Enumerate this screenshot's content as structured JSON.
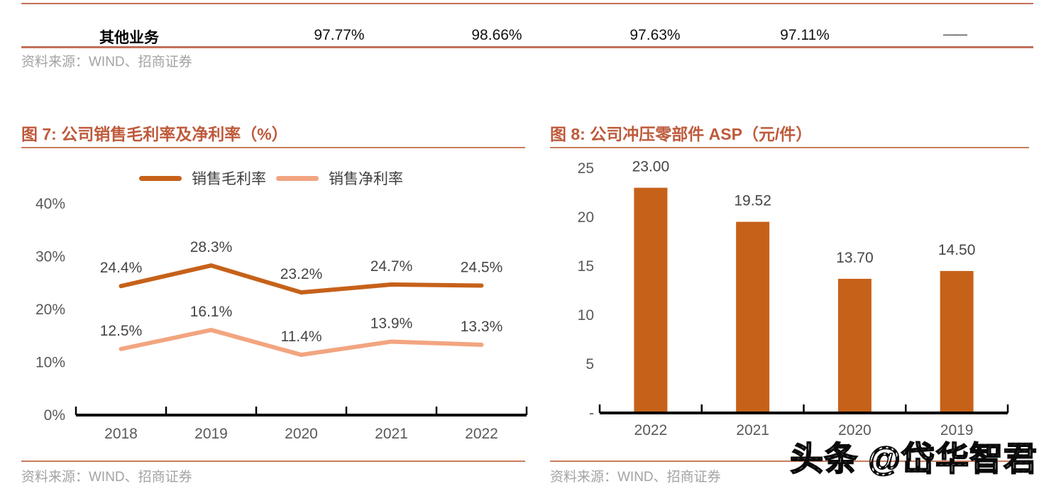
{
  "table": {
    "row_label": "其他业务",
    "values": [
      "97.77%",
      "98.66%",
      "97.63%",
      "97.11%",
      "——"
    ]
  },
  "source_top": "资料来源：WIND、招商证券",
  "watermark": "头条 @岱华智君",
  "chart_data": [
    {
      "type": "line",
      "title": "图 7: 公司销售毛利率及净利率（%）",
      "categories": [
        "2018",
        "2019",
        "2020",
        "2021",
        "2022"
      ],
      "series": [
        {
          "name": "销售毛利率",
          "values": [
            24.4,
            28.3,
            23.2,
            24.7,
            24.5
          ],
          "labels": [
            "24.4%",
            "28.3%",
            "23.2%",
            "24.7%",
            "24.5%"
          ],
          "color": "#C6611A"
        },
        {
          "name": "销售净利率",
          "values": [
            12.5,
            16.1,
            11.4,
            13.9,
            13.3
          ],
          "labels": [
            "12.5%",
            "16.1%",
            "11.4%",
            "13.9%",
            "13.3%"
          ],
          "color": "#F2A580"
        }
      ],
      "y_ticks": [
        "0%",
        "10%",
        "20%",
        "30%",
        "40%"
      ],
      "ylim": [
        0,
        40
      ],
      "xlabel": "",
      "ylabel": "",
      "grid": false,
      "legend_position": "top",
      "source": "资料来源：WIND、招商证券"
    },
    {
      "type": "bar",
      "title": "图 8: 公司冲压零部件 ASP（元/件）",
      "categories": [
        "2022",
        "2021",
        "2020",
        "2019"
      ],
      "values": [
        23.0,
        19.52,
        13.7,
        14.5
      ],
      "labels": [
        "23.00",
        "19.52",
        "13.70",
        "14.50"
      ],
      "bar_color": "#C6611A",
      "y_ticks": [
        "-",
        "5",
        "10",
        "15",
        "20",
        "25"
      ],
      "ylim": [
        0,
        25
      ],
      "xlabel": "",
      "ylabel": "",
      "grid": false,
      "source": "资料来源：WIND、招商证券"
    }
  ]
}
